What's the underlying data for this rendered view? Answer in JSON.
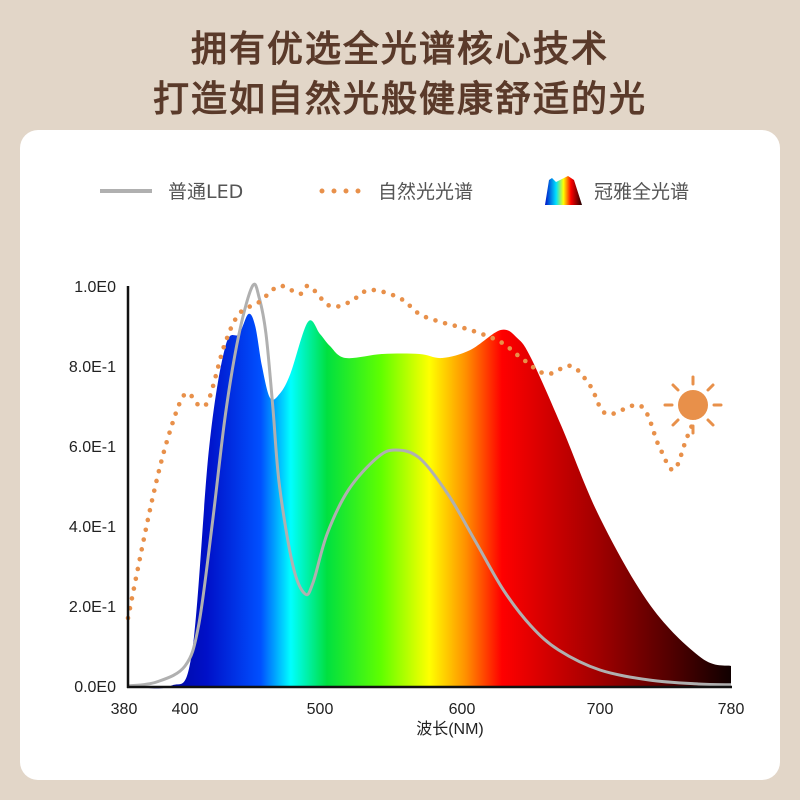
{
  "title_lines": [
    "拥有优选全光谱核心技术",
    "打造如自然光般健康舒适的光"
  ],
  "chart_data": {
    "type": "area",
    "xlabel": "波长(NM)",
    "ylabel": "",
    "xlim": [
      380,
      780
    ],
    "ylim": [
      0,
      1
    ],
    "x_ticks": [
      "380",
      "400",
      "500",
      "600",
      "700",
      "780"
    ],
    "x_tick_values": [
      380,
      400,
      500,
      600,
      700,
      780
    ],
    "y_ticks": [
      "0.0E0",
      "2.0E-1",
      "4.0E-1",
      "6.0E-1",
      "8.0E-1",
      "1.0E0"
    ],
    "y_tick_values": [
      0,
      0.2,
      0.4,
      0.6,
      0.8,
      1.0
    ],
    "grid": false,
    "legend_position": "top",
    "series": [
      {
        "name": "普通LED",
        "style": "solid-line",
        "color": "#b0b0b0",
        "x": [
          380,
          390,
          400,
          410,
          420,
          430,
          440,
          450,
          455,
          460,
          465,
          470,
          480,
          489,
          495,
          505,
          520,
          540,
          553,
          570,
          590,
          610,
          630,
          650,
          670,
          700,
          730,
          760,
          780
        ],
        "y": [
          0,
          0.01,
          0.05,
          0.15,
          0.4,
          0.68,
          0.88,
          1.0,
          0.97,
          0.88,
          0.7,
          0.5,
          0.3,
          0.23,
          0.26,
          0.38,
          0.49,
          0.57,
          0.59,
          0.57,
          0.48,
          0.36,
          0.24,
          0.15,
          0.09,
          0.04,
          0.015,
          0.005,
          0.003
        ]
      },
      {
        "name": "自然光光谱",
        "style": "dotted-line",
        "color": "#e8904a",
        "x": [
          380,
          388,
          394,
          400,
          411,
          418,
          429,
          440,
          455,
          470,
          485,
          492,
          507,
          521,
          535,
          556,
          570,
          585,
          606,
          628,
          643,
          661,
          679,
          693,
          704,
          725,
          736,
          745,
          753,
          761
        ],
        "y": [
          0.17,
          0.45,
          0.62,
          0.73,
          0.7,
          0.72,
          0.85,
          0.93,
          0.96,
          1.0,
          0.98,
          1.0,
          0.95,
          0.96,
          0.99,
          0.97,
          0.93,
          0.91,
          0.89,
          0.86,
          0.82,
          0.78,
          0.8,
          0.75,
          0.68,
          0.7,
          0.6,
          0.54,
          0.62,
          0.7
        ]
      },
      {
        "name": "冠雅全光谱",
        "style": "rainbow-fill",
        "x": [
          380,
          395,
          405,
          418,
          430,
          440,
          447,
          452,
          457,
          463,
          470,
          478,
          491,
          500,
          507,
          518,
          544,
          570,
          586,
          606,
          628,
          640,
          650,
          672,
          700,
          731,
          762,
          780
        ],
        "y": [
          0,
          0,
          0.08,
          0.6,
          0.85,
          0.88,
          0.93,
          0.9,
          0.8,
          0.72,
          0.73,
          0.78,
          0.91,
          0.88,
          0.85,
          0.82,
          0.83,
          0.83,
          0.82,
          0.84,
          0.89,
          0.87,
          0.82,
          0.65,
          0.42,
          0.2,
          0.07,
          0.05
        ]
      }
    ]
  },
  "colors": {
    "title": "#5a3a2a",
    "background": "#e2d6c8",
    "sun": "#e8904a"
  },
  "icons": {
    "sun": "sun-icon",
    "spectrum": "spectrum-legend-icon"
  }
}
